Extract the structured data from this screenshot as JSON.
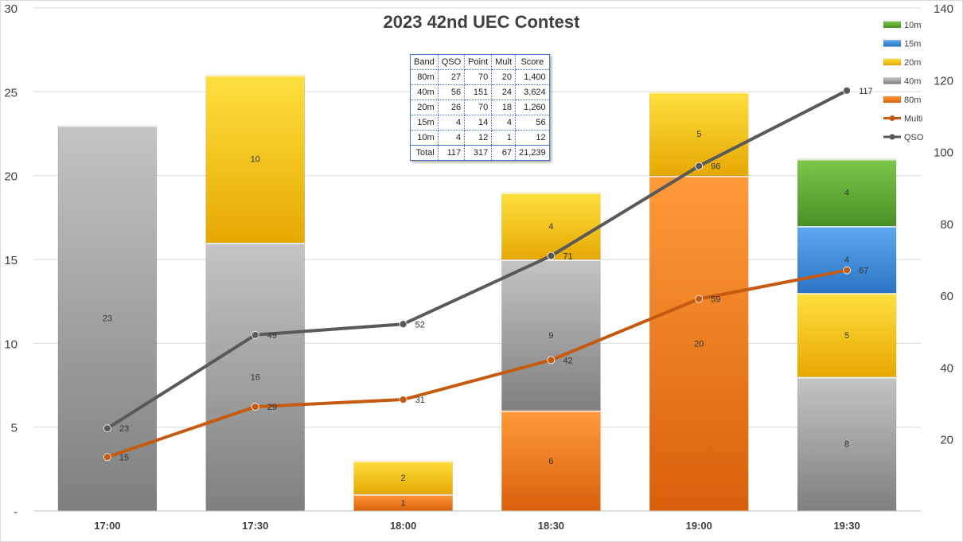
{
  "chart_data": {
    "type": "bar",
    "stacked": true,
    "title": "2023 42nd UEC Contest",
    "categories": [
      "17:00",
      "17:30",
      "18:00",
      "18:30",
      "19:00",
      "19:30"
    ],
    "ylim": [
      0,
      30
    ],
    "yticks": [
      "-",
      "5",
      "10",
      "15",
      "20",
      "25",
      "30"
    ],
    "y2lim": [
      0,
      140
    ],
    "y2ticks": [
      "",
      "20",
      "40",
      "60",
      "80",
      "100",
      "120",
      "140"
    ],
    "grid": true,
    "legend_position": "right",
    "series": [
      {
        "name": "80m",
        "type": "bar",
        "color": "#f07d1c",
        "values": [
          0,
          0,
          1,
          6,
          20,
          0
        ]
      },
      {
        "name": "40m",
        "type": "bar",
        "color": "#a6a6a6",
        "values": [
          23,
          16,
          0,
          9,
          0,
          8
        ]
      },
      {
        "name": "20m",
        "type": "bar",
        "color": "#fcc600",
        "values": [
          0,
          10,
          2,
          4,
          5,
          5
        ]
      },
      {
        "name": "15m",
        "type": "bar",
        "color": "#3d8fde",
        "values": [
          0,
          0,
          0,
          0,
          0,
          4
        ]
      },
      {
        "name": "10m",
        "type": "bar",
        "color": "#62ad33",
        "values": [
          0,
          0,
          0,
          0,
          0,
          4
        ]
      },
      {
        "name": "Multi",
        "type": "line",
        "axis": "right",
        "color": "#c55a11",
        "values": [
          15,
          29,
          31,
          42,
          59,
          67
        ]
      },
      {
        "name": "QSO",
        "type": "line",
        "axis": "right",
        "color": "#595959",
        "values": [
          23,
          49,
          52,
          71,
          96,
          117
        ]
      }
    ],
    "legend_order": [
      "10m",
      "15m",
      "20m",
      "40m",
      "80m",
      "Multi",
      "QSO"
    ]
  },
  "score_table": {
    "headers": [
      "Band",
      "QSO",
      "Point",
      "Mult",
      "Score"
    ],
    "rows": [
      [
        "80m",
        "27",
        "70",
        "20",
        "1,400"
      ],
      [
        "40m",
        "56",
        "151",
        "24",
        "3,624"
      ],
      [
        "20m",
        "26",
        "70",
        "18",
        "1,260"
      ],
      [
        "15m",
        "4",
        "14",
        "4",
        "56"
      ],
      [
        "10m",
        "4",
        "12",
        "1",
        "12"
      ],
      [
        "Total",
        "117",
        "317",
        "67",
        "21,239"
      ]
    ]
  }
}
